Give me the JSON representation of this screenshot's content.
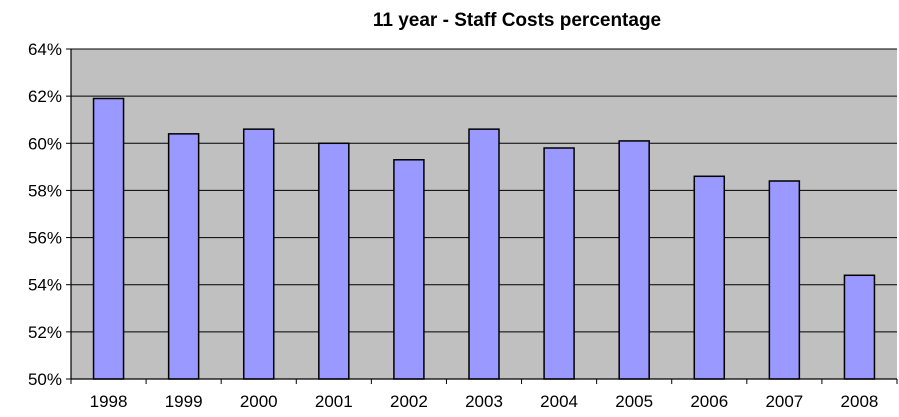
{
  "chart_data": {
    "type": "bar",
    "title": "11 year - Staff Costs percentage",
    "xlabel": "",
    "ylabel": "",
    "categories": [
      "1998",
      "1999",
      "2000",
      "2001",
      "2002",
      "2003",
      "2004",
      "2005",
      "2006",
      "2007",
      "2008"
    ],
    "values": [
      61.9,
      60.4,
      60.6,
      60.0,
      59.3,
      60.6,
      59.8,
      60.1,
      58.6,
      58.4,
      54.4
    ],
    "ylim": [
      50,
      64
    ],
    "y_ticks": [
      50,
      52,
      54,
      56,
      58,
      60,
      62,
      64
    ],
    "y_tick_labels": [
      "50%",
      "52%",
      "54%",
      "56%",
      "58%",
      "60%",
      "62%",
      "64%"
    ],
    "grid": true,
    "legend": "none",
    "colors": {
      "bar_fill": "#9999ff",
      "bar_stroke": "#000000",
      "plot_background": "#c0c0c0",
      "gridline": "#000000",
      "axis": "#000000"
    }
  }
}
